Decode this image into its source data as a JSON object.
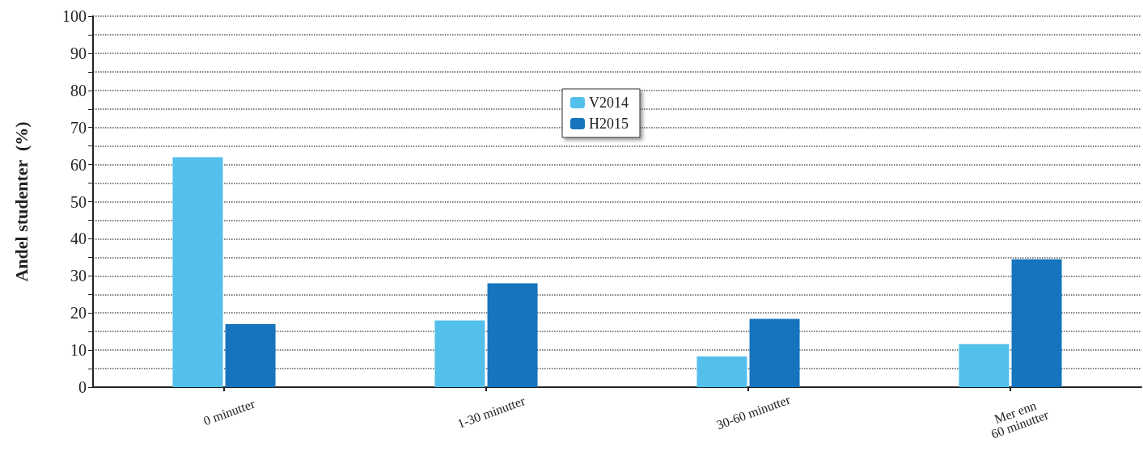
{
  "chart_data": {
    "type": "bar",
    "ylabel": "Andel studenter  (%)",
    "categories": [
      "0 minutter",
      "1-30 minutter",
      "30-60 minutter",
      "Mer enn\n60 minutter"
    ],
    "series": [
      {
        "name": "V2014",
        "color": "#53bfeb",
        "values": [
          62,
          18,
          8.3,
          11.6
        ]
      },
      {
        "name": "H2015",
        "color": "#1574bd",
        "values": [
          17,
          28,
          18.4,
          34.5
        ]
      }
    ],
    "ylim": [
      0,
      100
    ],
    "yticks": [
      0,
      {
        "value": 5,
        "label": null
      },
      10,
      {
        "value": 15,
        "label": null
      },
      20,
      {
        "value": 25,
        "label": null
      },
      30,
      {
        "value": 35,
        "label": null
      },
      40,
      {
        "value": 45,
        "label": null
      },
      50,
      {
        "value": 55,
        "label": null
      },
      60,
      {
        "value": 65,
        "label": null
      },
      70,
      {
        "value": 75,
        "label": null
      },
      80,
      {
        "value": 85,
        "label": null
      },
      90,
      {
        "value": 95,
        "label": null
      },
      100
    ],
    "grid": "y",
    "legend": "top"
  }
}
